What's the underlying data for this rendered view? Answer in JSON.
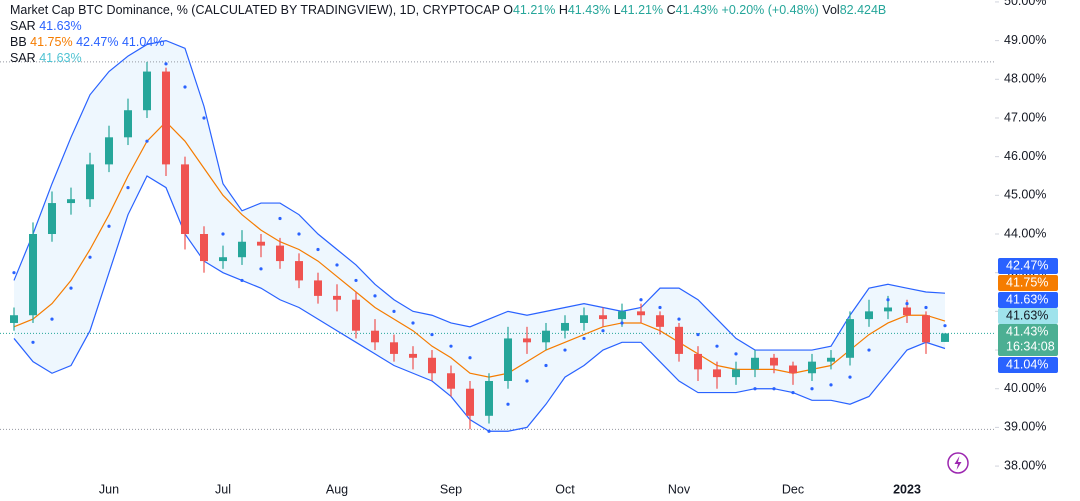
{
  "header": {
    "title": "Market Cap BTC Dominance, % (CALCULATED BY TRADINGVIEW), 1D, CRYPTOCAP",
    "ohlc": [
      {
        "key": "O",
        "value": "41.21%"
      },
      {
        "key": "H",
        "value": "41.43%"
      },
      {
        "key": "L",
        "value": "41.21%"
      },
      {
        "key": "C",
        "value": "41.43%"
      }
    ],
    "change": "+0.20% (+0.48%)",
    "vol_key": "Vol",
    "vol": "82.424B",
    "indicators": [
      {
        "name": "SAR",
        "values": [
          {
            "text": "41.63%",
            "color": "#2962ff"
          }
        ]
      },
      {
        "name": "BB",
        "values": [
          {
            "text": "41.75%",
            "color": "#f57c00"
          },
          {
            "text": "42.47%",
            "color": "#2962ff"
          },
          {
            "text": "41.04%",
            "color": "#2962ff"
          }
        ]
      },
      {
        "name": "SAR",
        "values": [
          {
            "text": "41.63%",
            "color": "#4fc3d3"
          }
        ]
      }
    ]
  },
  "chart_data": {
    "type": "candlestick",
    "categories": [
      null,
      null,
      null,
      null,
      null,
      "Jun",
      null,
      null,
      null,
      null,
      null,
      "Jul",
      null,
      null,
      null,
      null,
      null,
      "Aug",
      null,
      null,
      null,
      null,
      null,
      "Sep",
      null,
      null,
      null,
      null,
      null,
      "Oct",
      null,
      null,
      null,
      null,
      null,
      "Nov",
      null,
      null,
      null,
      null,
      null,
      "Dec",
      null,
      null,
      null,
      null,
      null,
      "2023",
      null,
      null
    ],
    "open": [
      41.7,
      41.9,
      44.0,
      44.8,
      44.9,
      45.8,
      46.5,
      47.2,
      48.2,
      45.8,
      44.0,
      43.3,
      43.4,
      43.8,
      43.7,
      43.3,
      42.8,
      42.4,
      42.3,
      41.5,
      41.2,
      40.9,
      40.8,
      40.4,
      40.0,
      39.3,
      40.2,
      41.3,
      41.2,
      41.5,
      41.7,
      41.9,
      41.8,
      42.0,
      41.9,
      41.6,
      40.9,
      40.5,
      40.3,
      40.5,
      40.8,
      40.6,
      40.4,
      40.7,
      40.8,
      41.8,
      42.0,
      42.1,
      41.9,
      41.21
    ],
    "high": [
      42.1,
      44.3,
      45.1,
      45.2,
      46.1,
      46.8,
      47.5,
      48.45,
      48.3,
      46.0,
      44.2,
      43.7,
      44.1,
      44.0,
      43.9,
      43.5,
      43.0,
      42.7,
      42.5,
      41.8,
      41.4,
      41.1,
      41.0,
      40.6,
      40.2,
      40.4,
      41.6,
      41.6,
      41.7,
      41.9,
      42.1,
      42.1,
      42.2,
      42.2,
      42.0,
      41.7,
      41.1,
      40.7,
      40.7,
      41.0,
      40.9,
      40.7,
      40.9,
      41.0,
      42.0,
      42.3,
      42.4,
      42.3,
      42.0,
      41.43
    ],
    "low": [
      41.5,
      41.7,
      43.8,
      44.5,
      44.7,
      45.6,
      46.3,
      47.0,
      45.5,
      43.6,
      43.0,
      43.1,
      43.2,
      43.4,
      43.1,
      42.6,
      42.2,
      42.0,
      41.3,
      41.0,
      40.7,
      40.5,
      40.2,
      39.8,
      38.95,
      39.1,
      40.0,
      40.9,
      41.0,
      41.3,
      41.5,
      41.6,
      41.6,
      41.7,
      41.4,
      40.7,
      40.2,
      40.0,
      40.1,
      40.3,
      40.4,
      40.1,
      40.2,
      40.5,
      40.6,
      41.6,
      41.8,
      41.7,
      40.9,
      41.21
    ],
    "close": [
      41.9,
      44.0,
      44.8,
      44.9,
      45.8,
      46.5,
      47.2,
      48.2,
      45.8,
      44.0,
      43.3,
      43.4,
      43.8,
      43.7,
      43.3,
      42.8,
      42.4,
      42.3,
      41.5,
      41.2,
      40.9,
      40.8,
      40.4,
      40.0,
      39.3,
      40.2,
      41.3,
      41.2,
      41.5,
      41.7,
      41.9,
      41.8,
      42.0,
      41.9,
      41.6,
      40.9,
      40.5,
      40.3,
      40.5,
      40.8,
      40.6,
      40.4,
      40.7,
      40.8,
      41.8,
      42.0,
      42.1,
      41.9,
      41.2,
      41.43
    ],
    "up_color": "#26a69a",
    "down_color": "#ef5350",
    "bollinger": {
      "upper": [
        42.8,
        44.0,
        45.3,
        46.5,
        47.6,
        48.2,
        48.6,
        48.9,
        49.0,
        48.8,
        47.3,
        45.3,
        44.6,
        44.8,
        44.8,
        44.5,
        44.0,
        43.6,
        43.2,
        42.7,
        42.3,
        42.0,
        41.9,
        41.7,
        41.6,
        41.8,
        42.0,
        41.9,
        42.0,
        42.1,
        42.2,
        42.1,
        42.0,
        42.1,
        42.6,
        42.6,
        42.3,
        41.8,
        41.3,
        41.0,
        41.0,
        41.0,
        41.0,
        41.1,
        41.9,
        42.6,
        42.7,
        42.6,
        42.5,
        42.47
      ],
      "basis": [
        41.6,
        41.8,
        42.2,
        42.8,
        43.6,
        44.5,
        45.5,
        46.4,
        46.9,
        46.4,
        45.7,
        45.0,
        44.5,
        44.1,
        43.8,
        43.6,
        43.3,
        42.9,
        42.5,
        42.1,
        41.8,
        41.5,
        41.1,
        40.8,
        40.4,
        40.3,
        40.4,
        40.7,
        41.0,
        41.2,
        41.4,
        41.6,
        41.7,
        41.7,
        41.5,
        41.2,
        40.9,
        40.6,
        40.5,
        40.5,
        40.5,
        40.4,
        40.5,
        40.6,
        41.0,
        41.4,
        41.7,
        41.9,
        41.9,
        41.75
      ],
      "lower": [
        41.3,
        40.7,
        40.4,
        40.6,
        41.5,
        43.0,
        44.5,
        45.5,
        45.2,
        44.0,
        43.3,
        43.0,
        42.8,
        42.6,
        42.3,
        42.1,
        41.8,
        41.5,
        41.2,
        40.9,
        40.6,
        40.4,
        40.2,
        39.8,
        39.2,
        38.9,
        38.9,
        39.0,
        39.6,
        40.3,
        40.6,
        41.0,
        41.2,
        41.2,
        40.7,
        40.2,
        39.9,
        39.9,
        39.9,
        40.0,
        40.0,
        39.9,
        39.7,
        39.7,
        39.6,
        39.8,
        40.4,
        41.0,
        41.2,
        41.04
      ],
      "band_color": "#2962ff",
      "basis_color": "#f57c00"
    },
    "sar": [
      43.0,
      41.2,
      41.8,
      42.6,
      43.4,
      44.2,
      45.2,
      46.4,
      48.4,
      47.8,
      47.0,
      44.0,
      42.8,
      43.1,
      44.4,
      44.0,
      43.6,
      43.2,
      42.8,
      42.4,
      42.0,
      41.7,
      41.4,
      41.1,
      40.8,
      38.9,
      39.6,
      40.2,
      40.6,
      41.0,
      41.3,
      41.5,
      41.7,
      42.3,
      42.1,
      41.8,
      41.4,
      41.1,
      40.9,
      40.0,
      40.0,
      39.9,
      40.0,
      40.1,
      40.3,
      41.0,
      42.3,
      42.2,
      42.1,
      41.63
    ],
    "sar_color": "#2962ff",
    "ylim": [
      37.64,
      50.05
    ],
    "yticks": [
      {
        "value": 38,
        "label": "38.00%"
      },
      {
        "value": 39,
        "label": "39.00%"
      },
      {
        "value": 40,
        "label": "40.00%"
      },
      {
        "value": 41,
        "label": "41.00%"
      },
      {
        "value": 42,
        "label": "42.00%"
      },
      {
        "value": 43,
        "label": "43.00%"
      },
      {
        "value": 44,
        "label": "44.00%"
      },
      {
        "value": 45,
        "label": "45.00%"
      },
      {
        "value": 46,
        "label": "46.00%"
      },
      {
        "value": 47,
        "label": "47.00%"
      },
      {
        "value": 48,
        "label": "48.00%"
      },
      {
        "value": 49,
        "label": "49.00%"
      },
      {
        "value": 50,
        "label": "50.00%"
      }
    ],
    "price_labels": [
      {
        "value": 42.47,
        "label": "42.47%",
        "color": "#2962ff"
      },
      {
        "value": 41.75,
        "label": "41.75%",
        "color": "#f57c00"
      },
      {
        "value": 41.63,
        "label": "41.63%",
        "color": "#2962ff"
      },
      {
        "value": 41.63,
        "label": "41.63%",
        "color": "#9fe3ec"
      },
      {
        "value": 41.43,
        "label": "41.43%",
        "color": "#4caf93",
        "sub": "16:34:08"
      },
      {
        "value": 41.04,
        "label": "41.04%",
        "color": "#2962ff"
      }
    ]
  }
}
